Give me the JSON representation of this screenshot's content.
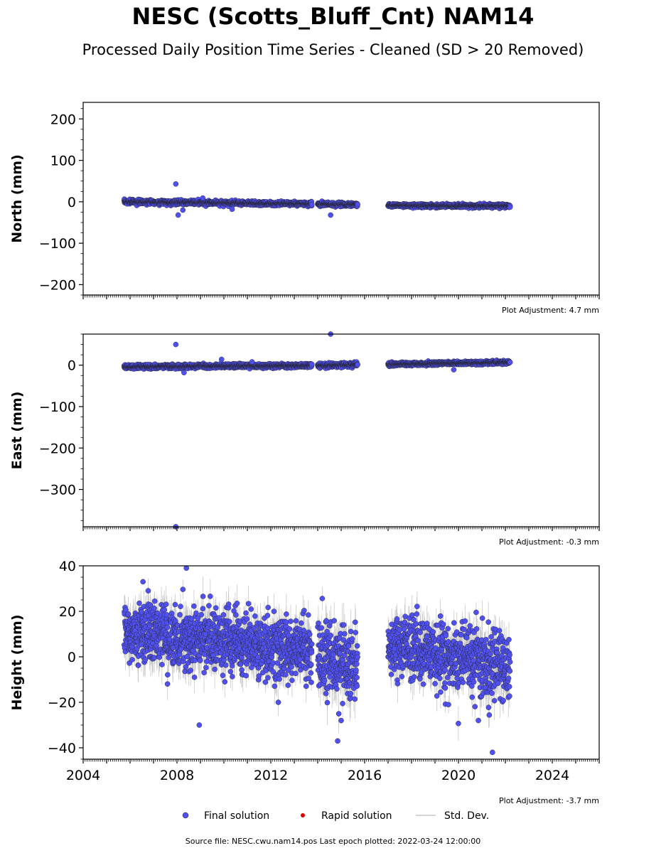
{
  "title": "NESC (Scotts_Bluff_Cnt) NAM14",
  "subtitle": "Processed Daily Position Time Series - Cleaned (SD > 20 Removed)",
  "source_text": "Source file: NESC.cwu.nam14.pos  Last epoch plotted: 2022-03-24 12:00:00",
  "colors": {
    "final": "#5050f0",
    "rapid": "#dd0000",
    "sd": "#bbbbbb"
  },
  "legend": {
    "final": "Final solution",
    "rapid": "Rapid solution",
    "sd": "Std. Dev."
  },
  "chart_data": [
    {
      "type": "scatter",
      "ylabel": "North (mm)",
      "adjustment": "Plot Adjustment: 4.7 mm",
      "xlim": [
        2004,
        2026
      ],
      "ylim": [
        -225,
        240
      ],
      "yticks": [
        {
          "v": 200,
          "label": "200"
        },
        {
          "v": 100,
          "label": "100"
        },
        {
          "v": 0,
          "label": "0"
        },
        {
          "v": -100,
          "label": "−100"
        },
        {
          "v": -200,
          "label": "−200"
        }
      ],
      "segments": [
        {
          "start": 2005.75,
          "end": 2013.75,
          "y0": 0,
          "y1": -5,
          "noise": 2.5,
          "sd": 4
        },
        {
          "start": 2014.0,
          "end": 2015.7,
          "y0": -5,
          "y1": -7,
          "noise": 2.5,
          "sd": 4
        },
        {
          "start": 2017.0,
          "end": 2022.2,
          "y0": -9,
          "y1": -10,
          "noise": 2,
          "sd": 3
        }
      ],
      "outliers": [
        [
          2007.95,
          43
        ],
        [
          2008.05,
          -32
        ],
        [
          2008.25,
          -20
        ],
        [
          2010.35,
          -18
        ],
        [
          2014.55,
          -32
        ],
        [
          2009.1,
          9
        ],
        [
          2022.2,
          -13
        ]
      ]
    },
    {
      "type": "scatter",
      "ylabel": "East (mm)",
      "adjustment": "Plot Adjustment: -0.3 mm",
      "xlim": [
        2004,
        2026
      ],
      "ylim": [
        -390,
        75
      ],
      "yticks": [
        {
          "v": 0,
          "label": "0"
        },
        {
          "v": -100,
          "label": "−100"
        },
        {
          "v": -200,
          "label": "−200"
        },
        {
          "v": -300,
          "label": "−300"
        }
      ],
      "segments": [
        {
          "start": 2005.75,
          "end": 2013.75,
          "y0": -4,
          "y1": -1,
          "noise": 2.5,
          "sd": 4
        },
        {
          "start": 2014.0,
          "end": 2015.7,
          "y0": -1,
          "y1": 1,
          "noise": 2.5,
          "sd": 4
        },
        {
          "start": 2017.0,
          "end": 2022.2,
          "y0": 2,
          "y1": 7,
          "noise": 2,
          "sd": 3
        }
      ],
      "outliers": [
        [
          2007.95,
          50
        ],
        [
          2014.55,
          75
        ],
        [
          2007.95,
          -390
        ],
        [
          2008.3,
          -18
        ],
        [
          2009.9,
          14
        ],
        [
          2019.8,
          -11
        ],
        [
          2011.2,
          8
        ]
      ]
    },
    {
      "type": "scatter",
      "ylabel": "Height (mm)",
      "adjustment": "Plot Adjustment: -3.7 mm",
      "xlim": [
        2004,
        2026
      ],
      "ylim": [
        -45,
        40
      ],
      "yticks": [
        {
          "v": 40,
          "label": "40"
        },
        {
          "v": 20,
          "label": "20"
        },
        {
          "v": 0,
          "label": "0"
        },
        {
          "v": -20,
          "label": "−20"
        },
        {
          "v": -40,
          "label": "−40"
        }
      ],
      "xticks": [
        {
          "v": 2004,
          "label": "2004"
        },
        {
          "v": 2008,
          "label": "2008"
        },
        {
          "v": 2012,
          "label": "2012"
        },
        {
          "v": 2016,
          "label": "2016"
        },
        {
          "v": 2020,
          "label": "2020"
        },
        {
          "v": 2024,
          "label": "2024"
        }
      ],
      "segments": [
        {
          "start": 2005.75,
          "end": 2013.75,
          "y0": 11,
          "y1": 2,
          "noise": 7,
          "sd": 6
        },
        {
          "start": 2014.0,
          "end": 2015.7,
          "y0": 0,
          "y1": -6,
          "noise": 8,
          "sd": 7
        },
        {
          "start": 2017.0,
          "end": 2022.2,
          "y0": 5,
          "y1": -5,
          "noise": 7,
          "sd": 6
        }
      ],
      "outliers": [
        [
          2008.4,
          39
        ],
        [
          2008.95,
          -30
        ],
        [
          2014.85,
          -37
        ],
        [
          2021.45,
          -42
        ],
        [
          2006.55,
          33
        ],
        [
          2015.0,
          -28
        ],
        [
          2020.85,
          -28
        ]
      ]
    }
  ]
}
